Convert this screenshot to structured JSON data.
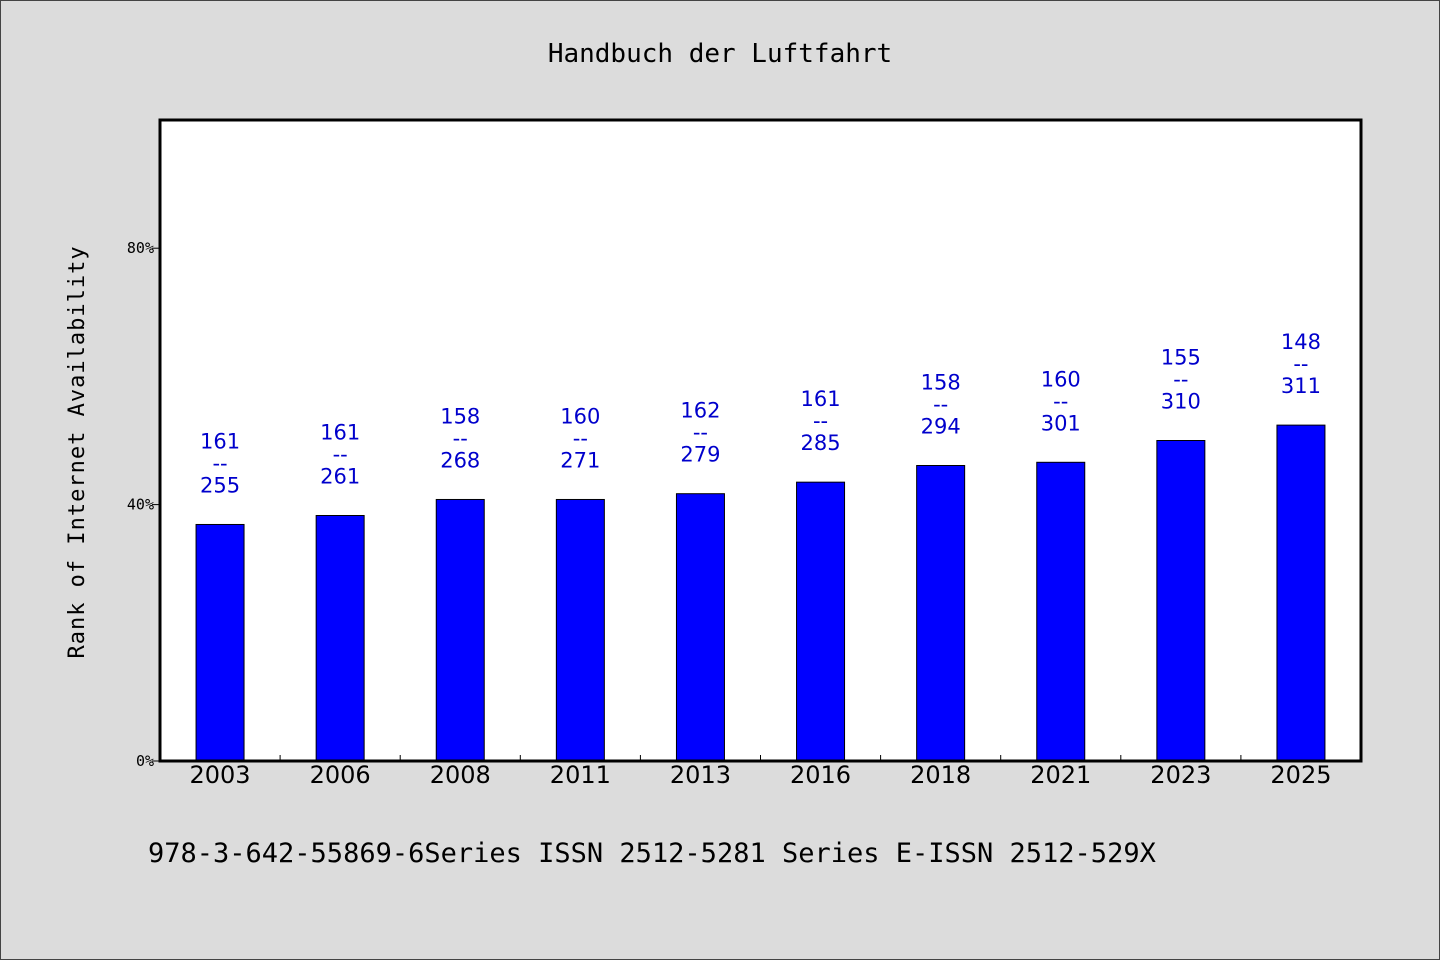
{
  "chart_data": {
    "type": "bar",
    "title": "Handbuch der Luftfahrt",
    "ylabel": "Rank of Internet Availability",
    "xlabel": "",
    "ylim": [
      0,
      100
    ],
    "y_ticks": [
      {
        "value": 0,
        "label": "0%"
      },
      {
        "value": 40,
        "label": "40%"
      },
      {
        "value": 80,
        "label": "80%"
      }
    ],
    "categories": [
      "2003",
      "2006",
      "2008",
      "2011",
      "2013",
      "2016",
      "2018",
      "2021",
      "2023",
      "2025"
    ],
    "values": [
      36.9,
      38.3,
      40.8,
      40.8,
      41.7,
      43.5,
      46.1,
      46.6,
      50.0,
      52.4
    ],
    "data_labels": [
      {
        "top": "161",
        "mid": "--",
        "bottom": "255"
      },
      {
        "top": "161",
        "mid": "--",
        "bottom": "261"
      },
      {
        "top": "158",
        "mid": "--",
        "bottom": "268"
      },
      {
        "top": "160",
        "mid": "--",
        "bottom": "271"
      },
      {
        "top": "162",
        "mid": "--",
        "bottom": "279"
      },
      {
        "top": "161",
        "mid": "--",
        "bottom": "285"
      },
      {
        "top": "158",
        "mid": "--",
        "bottom": "294"
      },
      {
        "top": "160",
        "mid": "--",
        "bottom": "301"
      },
      {
        "top": "155",
        "mid": "--",
        "bottom": "310"
      },
      {
        "top": "148",
        "mid": "--",
        "bottom": "311"
      }
    ],
    "bar_color": "#0000ff",
    "label_color": "#0000cc",
    "grid": false,
    "legend": "none"
  },
  "footer": "978-3-642-55869-6Series ISSN 2512-5281 Series E-ISSN 2512-529X"
}
